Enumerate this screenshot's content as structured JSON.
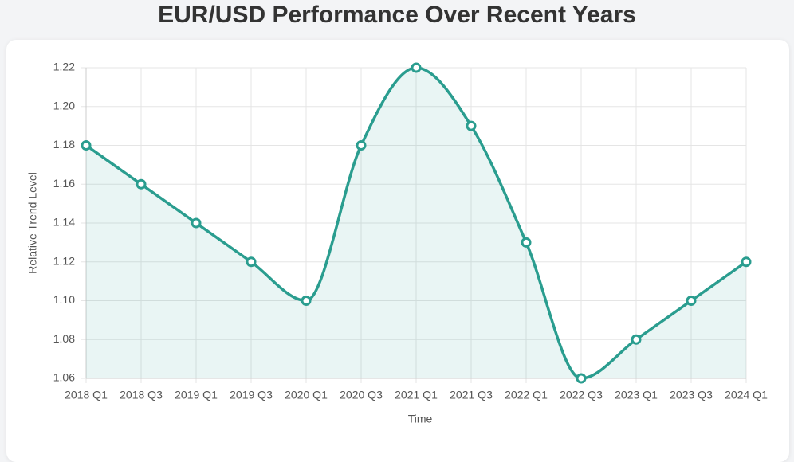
{
  "chart_data": {
    "type": "line",
    "title": "EUR/USD Performance Over Recent Years",
    "x_label": "Time",
    "y_label": "Relative Trend Level",
    "categories": [
      "2018 Q1",
      "2018 Q3",
      "2019 Q1",
      "2019 Q3",
      "2020 Q1",
      "2020 Q3",
      "2021 Q1",
      "2021 Q3",
      "2022 Q1",
      "2022 Q3",
      "2023 Q1",
      "2023 Q3",
      "2024 Q1"
    ],
    "series": [
      {
        "name": "EUR/USD",
        "color": "#2a9d8f",
        "values": [
          1.18,
          1.16,
          1.14,
          1.12,
          1.1,
          1.18,
          1.22,
          1.19,
          1.13,
          1.06,
          1.08,
          1.1,
          1.12
        ]
      }
    ],
    "ylim": [
      1.06,
      1.22
    ],
    "yticks": [
      1.06,
      1.08,
      {
        "value": 1.1,
        "label": "1.10"
      },
      1.12,
      1.14,
      1.16,
      1.18,
      {
        "value": 1.2,
        "label": "1.20"
      },
      1.22
    ],
    "grid": true,
    "fill": true
  }
}
